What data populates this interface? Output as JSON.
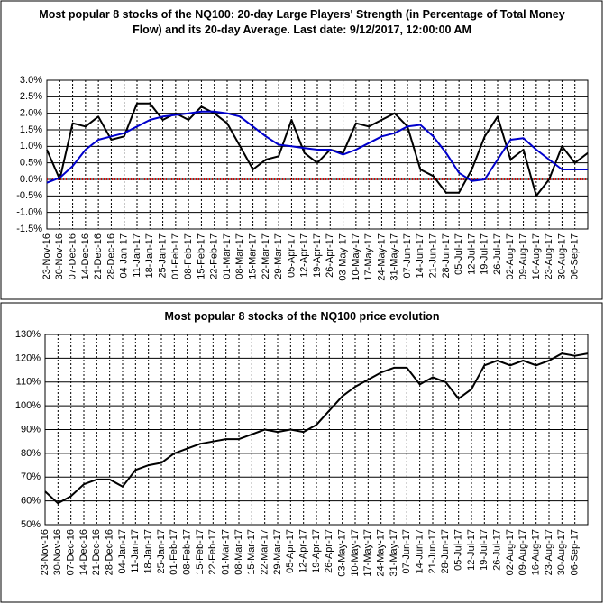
{
  "chart_data": [
    {
      "type": "line",
      "title": "Most popular 8 stocks of the NQ100: 20-day Large Players' Strength (in Percentage of Total Money Flow) and its 20-day Average. Last date: 9/12/2017, 12:00:00 AM",
      "categories": [
        "23-Nov-16",
        "30-Nov-16",
        "07-Dec-16",
        "14-Dec-16",
        "21-Dec-16",
        "28-Dec-16",
        "04-Jan-17",
        "11-Jan-17",
        "18-Jan-17",
        "25-Jan-17",
        "01-Feb-17",
        "08-Feb-17",
        "15-Feb-17",
        "22-Feb-17",
        "01-Mar-17",
        "08-Mar-17",
        "15-Mar-17",
        "22-Mar-17",
        "29-Mar-17",
        "05-Apr-17",
        "12-Apr-17",
        "19-Apr-17",
        "26-Apr-17",
        "03-May-17",
        "10-May-17",
        "17-May-17",
        "24-May-17",
        "31-May-17",
        "07-Jun-17",
        "14-Jun-17",
        "21-Jun-17",
        "28-Jun-17",
        "05-Jul-17",
        "12-Jul-17",
        "19-Jul-17",
        "26-Jul-17",
        "02-Aug-17",
        "09-Aug-17",
        "16-Aug-17",
        "23-Aug-17",
        "30-Aug-17",
        "06-Sep-17",
        null
      ],
      "series": [
        {
          "color": "#000000",
          "values": [
            0.9,
            0.0,
            1.7,
            1.6,
            1.9,
            1.2,
            1.3,
            2.3,
            2.3,
            1.8,
            2.0,
            1.8,
            2.2,
            2.0,
            1.7,
            1.0,
            0.3,
            0.6,
            0.7,
            1.8,
            0.8,
            0.5,
            0.9,
            0.8,
            1.7,
            1.6,
            1.8,
            2.0,
            1.6,
            0.3,
            0.1,
            -0.4,
            -0.4,
            0.3,
            1.3,
            1.9,
            0.6,
            0.9,
            -0.5,
            0.0,
            1.0,
            0.5,
            0.8
          ]
        },
        {
          "color": "#0000cc",
          "values": [
            -0.1,
            0.05,
            0.4,
            0.9,
            1.2,
            1.3,
            1.4,
            1.6,
            1.8,
            1.9,
            1.95,
            2.0,
            2.05,
            2.05,
            2.0,
            1.9,
            1.6,
            1.3,
            1.05,
            1.0,
            0.95,
            0.9,
            0.9,
            0.75,
            0.9,
            1.1,
            1.3,
            1.4,
            1.6,
            1.65,
            1.3,
            0.8,
            0.2,
            -0.05,
            0.0,
            0.6,
            1.2,
            1.25,
            0.9,
            0.6,
            0.3,
            0.3,
            0.3
          ]
        }
      ],
      "ylim": [
        -1.5,
        3.0
      ],
      "yticks": [
        {
          "value": -1.5,
          "label": "-1.5%"
        },
        {
          "value": -1.0,
          "label": "-1.0%"
        },
        {
          "value": -0.5,
          "label": "-0.5%"
        },
        {
          "value": 0.0,
          "label": "0.0%"
        },
        {
          "value": 0.5,
          "label": "0.5%"
        },
        {
          "value": 1.0,
          "label": "1.0%"
        },
        {
          "value": 1.5,
          "label": "1.5%"
        },
        {
          "value": 2.0,
          "label": "2.0%"
        },
        {
          "value": 2.5,
          "label": "2.5%"
        },
        {
          "value": 3.0,
          "label": "3.0%"
        }
      ],
      "grid": true,
      "zero_line_color": "#dd0000"
    },
    {
      "type": "line",
      "title": "Most popular 8 stocks of the NQ100 price evolution",
      "categories": [
        "23-Nov-16",
        "30-Nov-16",
        "07-Dec-16",
        "14-Dec-16",
        "21-Dec-16",
        "28-Dec-16",
        "04-Jan-17",
        "11-Jan-17",
        "18-Jan-17",
        "25-Jan-17",
        "01-Feb-17",
        "08-Feb-17",
        "15-Feb-17",
        "22-Feb-17",
        "01-Mar-17",
        "08-Mar-17",
        "15-Mar-17",
        "22-Mar-17",
        "29-Mar-17",
        "05-Apr-17",
        "12-Apr-17",
        "19-Apr-17",
        "26-Apr-17",
        "03-May-17",
        "10-May-17",
        "17-May-17",
        "24-May-17",
        "31-May-17",
        "07-Jun-17",
        "14-Jun-17",
        "21-Jun-17",
        "28-Jun-17",
        "05-Jul-17",
        "12-Jul-17",
        "19-Jul-17",
        "26-Jul-17",
        "02-Aug-17",
        "09-Aug-17",
        "16-Aug-17",
        "23-Aug-17",
        "30-Aug-17",
        "06-Sep-17",
        null
      ],
      "series": [
        {
          "color": "#000000",
          "values": [
            64,
            59,
            62,
            67,
            69,
            69,
            66,
            73,
            75,
            76,
            80,
            82,
            84,
            85,
            86,
            86,
            88,
            90,
            89,
            90,
            89,
            92,
            98,
            104,
            108,
            111,
            114,
            116,
            116,
            109,
            112,
            110,
            103,
            107,
            117,
            119,
            117,
            119,
            117,
            119,
            122,
            121,
            122
          ]
        }
      ],
      "ylim": [
        50,
        130
      ],
      "yticks": [
        {
          "value": 50,
          "label": "50%"
        },
        {
          "value": 60,
          "label": "60%"
        },
        {
          "value": 70,
          "label": "70%"
        },
        {
          "value": 80,
          "label": "80%"
        },
        {
          "value": 90,
          "label": "90%"
        },
        {
          "value": 100,
          "label": "100%"
        },
        {
          "value": 110,
          "label": "110%"
        },
        {
          "value": 120,
          "label": "120%"
        },
        {
          "value": 130,
          "label": "130%"
        }
      ],
      "grid": true
    }
  ]
}
